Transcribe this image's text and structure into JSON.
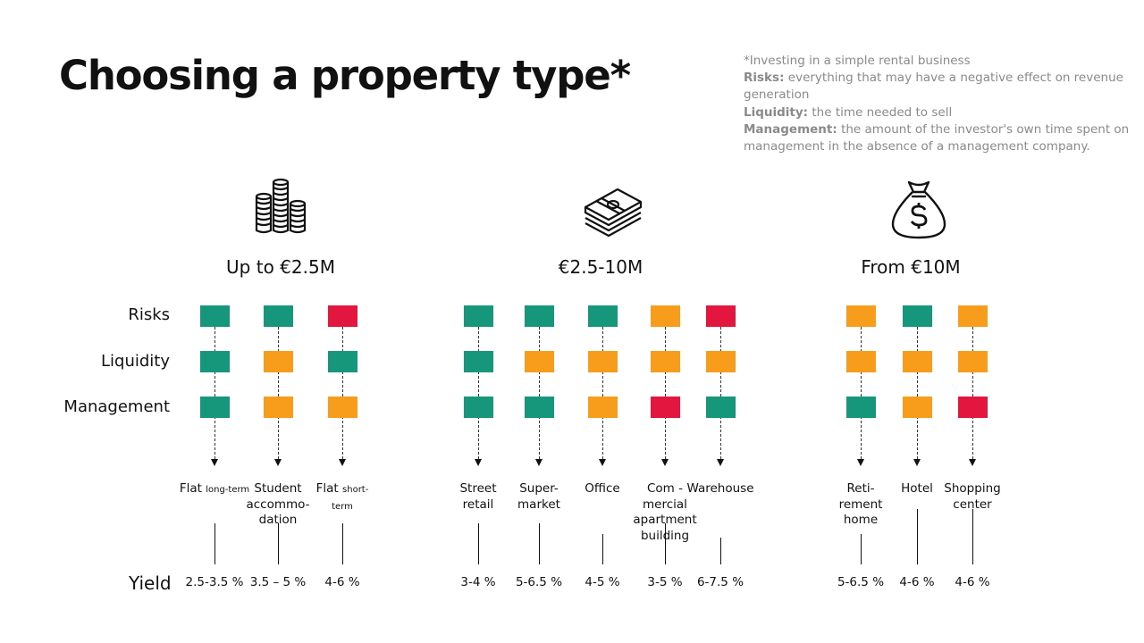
{
  "title": "Choosing a property type*",
  "note": {
    "line1": "*Investing in a simple rental business",
    "risks_term": "Risks:",
    "risks_text": " everything that may have a negative effect on revenue generation",
    "liquidity_term": "Liquidity:",
    "liquidity_text": " the time needed to sell",
    "management_term": "Management:",
    "management_text": " the amount of the investor's own time spent on management in the absence of a management company."
  },
  "rows": {
    "risks": "Risks",
    "liquidity": "Liquidity",
    "management": "Management",
    "yield": "Yield"
  },
  "groups": [
    {
      "label": "Up to €2.5M",
      "icon": "coin-stacks-icon"
    },
    {
      "label": "€2.5-10M",
      "icon": "cash-bundle-icon"
    },
    {
      "label": "From €10M",
      "icon": "money-bag-icon"
    }
  ],
  "colors": {
    "green": "#16967a",
    "orange": "#f89c1b",
    "red": "#e3163f"
  },
  "properties": [
    {
      "label": "Flat",
      "small": "long-term",
      "risk": "green",
      "liquidity": "green",
      "management": "green",
      "yield": "2.5-3.5 %"
    },
    {
      "label": "Student accommo- dation",
      "risk": "green",
      "liquidity": "orange",
      "management": "orange",
      "yield": "3.5 – 5 %"
    },
    {
      "label": "Flat",
      "small": "short-term",
      "risk": "red",
      "liquidity": "green",
      "management": "orange",
      "yield": "4-6 %"
    },
    {
      "label": "Street retail",
      "risk": "green",
      "liquidity": "green",
      "management": "green",
      "yield": "3-4 %"
    },
    {
      "label": "Super- market",
      "risk": "green",
      "liquidity": "orange",
      "management": "green",
      "yield": "5-6.5 %"
    },
    {
      "label": "Office",
      "risk": "green",
      "liquidity": "orange",
      "management": "orange",
      "yield": "4-5 %"
    },
    {
      "label": "Com -mercial apartment building",
      "risk": "orange",
      "liquidity": "orange",
      "management": "red",
      "yield": "3-5 %"
    },
    {
      "label": "Warehouse",
      "risk": "red",
      "liquidity": "orange",
      "management": "green",
      "yield": "6-7.5 %"
    },
    {
      "label": "Reti- rement home",
      "risk": "orange",
      "liquidity": "orange",
      "management": "green",
      "yield": "5-6.5 %"
    },
    {
      "label": "Hotel",
      "risk": "green",
      "liquidity": "orange",
      "management": "orange",
      "yield": "4-6 %"
    },
    {
      "label": "Shopping center",
      "risk": "orange",
      "liquidity": "orange",
      "management": "red",
      "yield": "4-6 %"
    }
  ]
}
